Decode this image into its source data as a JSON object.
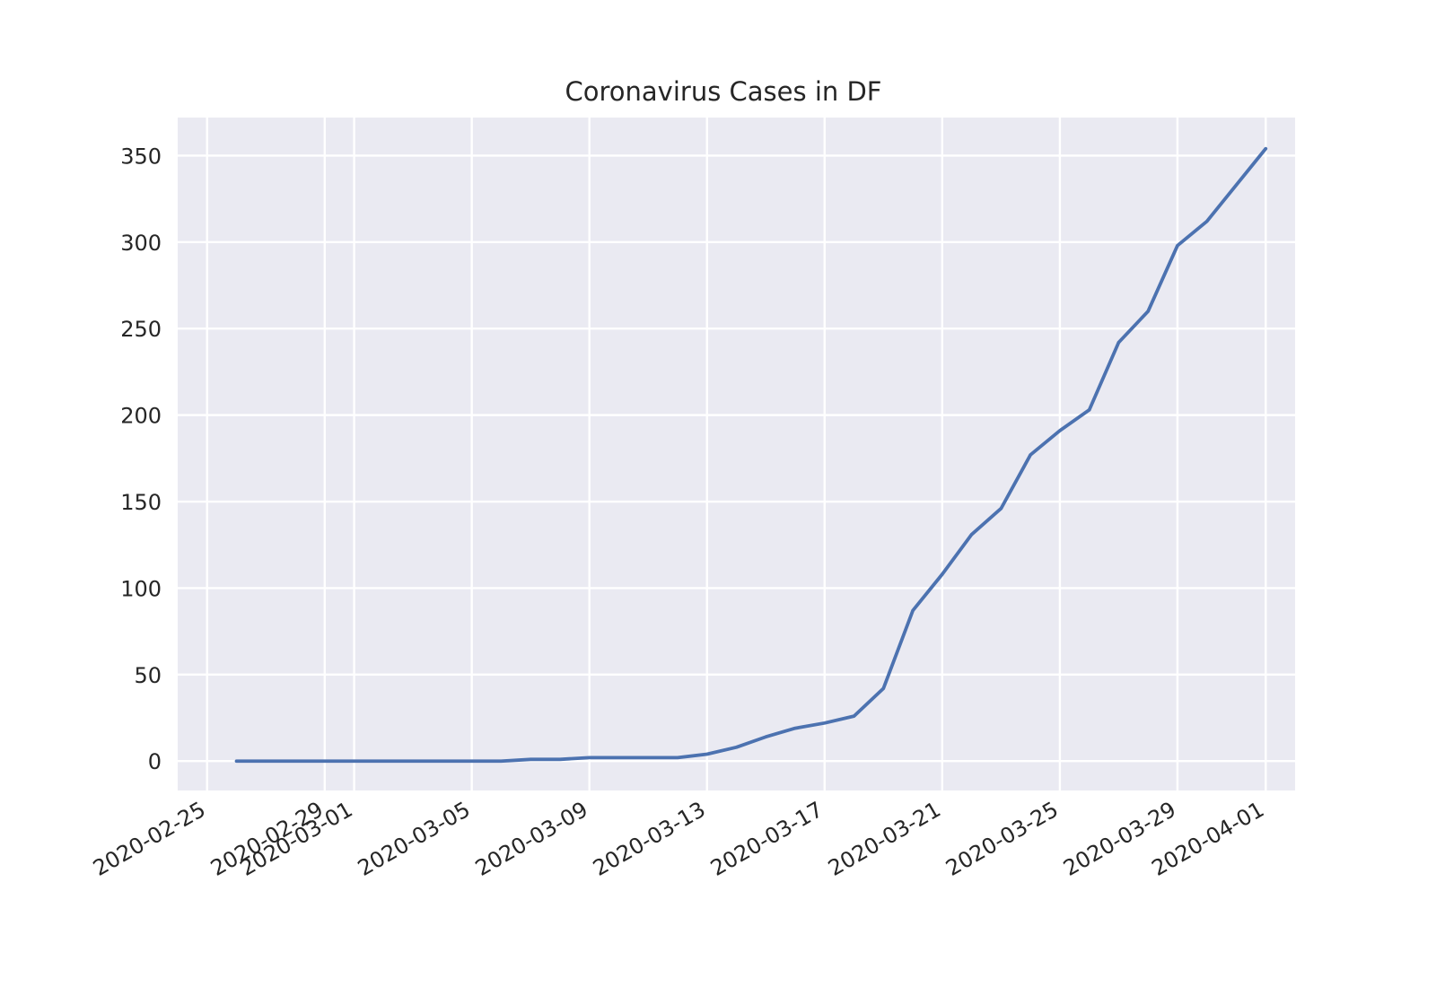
{
  "chart_data": {
    "type": "line",
    "title": "Coronavirus Cases in DF",
    "xlabel": "",
    "ylabel": "",
    "x_type": "date",
    "x_ticks": [
      "2020-02-25",
      "2020-02-29",
      "2020-03-01",
      "2020-03-05",
      "2020-03-09",
      "2020-03-13",
      "2020-03-17",
      "2020-03-21",
      "2020-03-25",
      "2020-03-29",
      "2020-04-01"
    ],
    "y_ticks": [
      0,
      50,
      100,
      150,
      200,
      250,
      300,
      350
    ],
    "xlim": [
      "2020-02-24",
      "2020-04-02"
    ],
    "ylim": [
      -17,
      372
    ],
    "grid": true,
    "series": [
      {
        "color": "#4c72b0",
        "x": [
          "2020-02-26",
          "2020-02-27",
          "2020-02-28",
          "2020-02-29",
          "2020-03-01",
          "2020-03-02",
          "2020-03-03",
          "2020-03-04",
          "2020-03-05",
          "2020-03-06",
          "2020-03-07",
          "2020-03-08",
          "2020-03-09",
          "2020-03-10",
          "2020-03-11",
          "2020-03-12",
          "2020-03-13",
          "2020-03-14",
          "2020-03-15",
          "2020-03-16",
          "2020-03-17",
          "2020-03-18",
          "2020-03-19",
          "2020-03-20",
          "2020-03-21",
          "2020-03-22",
          "2020-03-23",
          "2020-03-24",
          "2020-03-25",
          "2020-03-26",
          "2020-03-27",
          "2020-03-28",
          "2020-03-29",
          "2020-03-30",
          "2020-03-31",
          "2020-04-01"
        ],
        "values": [
          0,
          0,
          0,
          0,
          0,
          0,
          0,
          0,
          0,
          0,
          1,
          1,
          2,
          2,
          2,
          2,
          4,
          8,
          14,
          19,
          22,
          26,
          42,
          87,
          108,
          131,
          146,
          177,
          191,
          203,
          242,
          260,
          298,
          312,
          333,
          354
        ]
      }
    ]
  }
}
